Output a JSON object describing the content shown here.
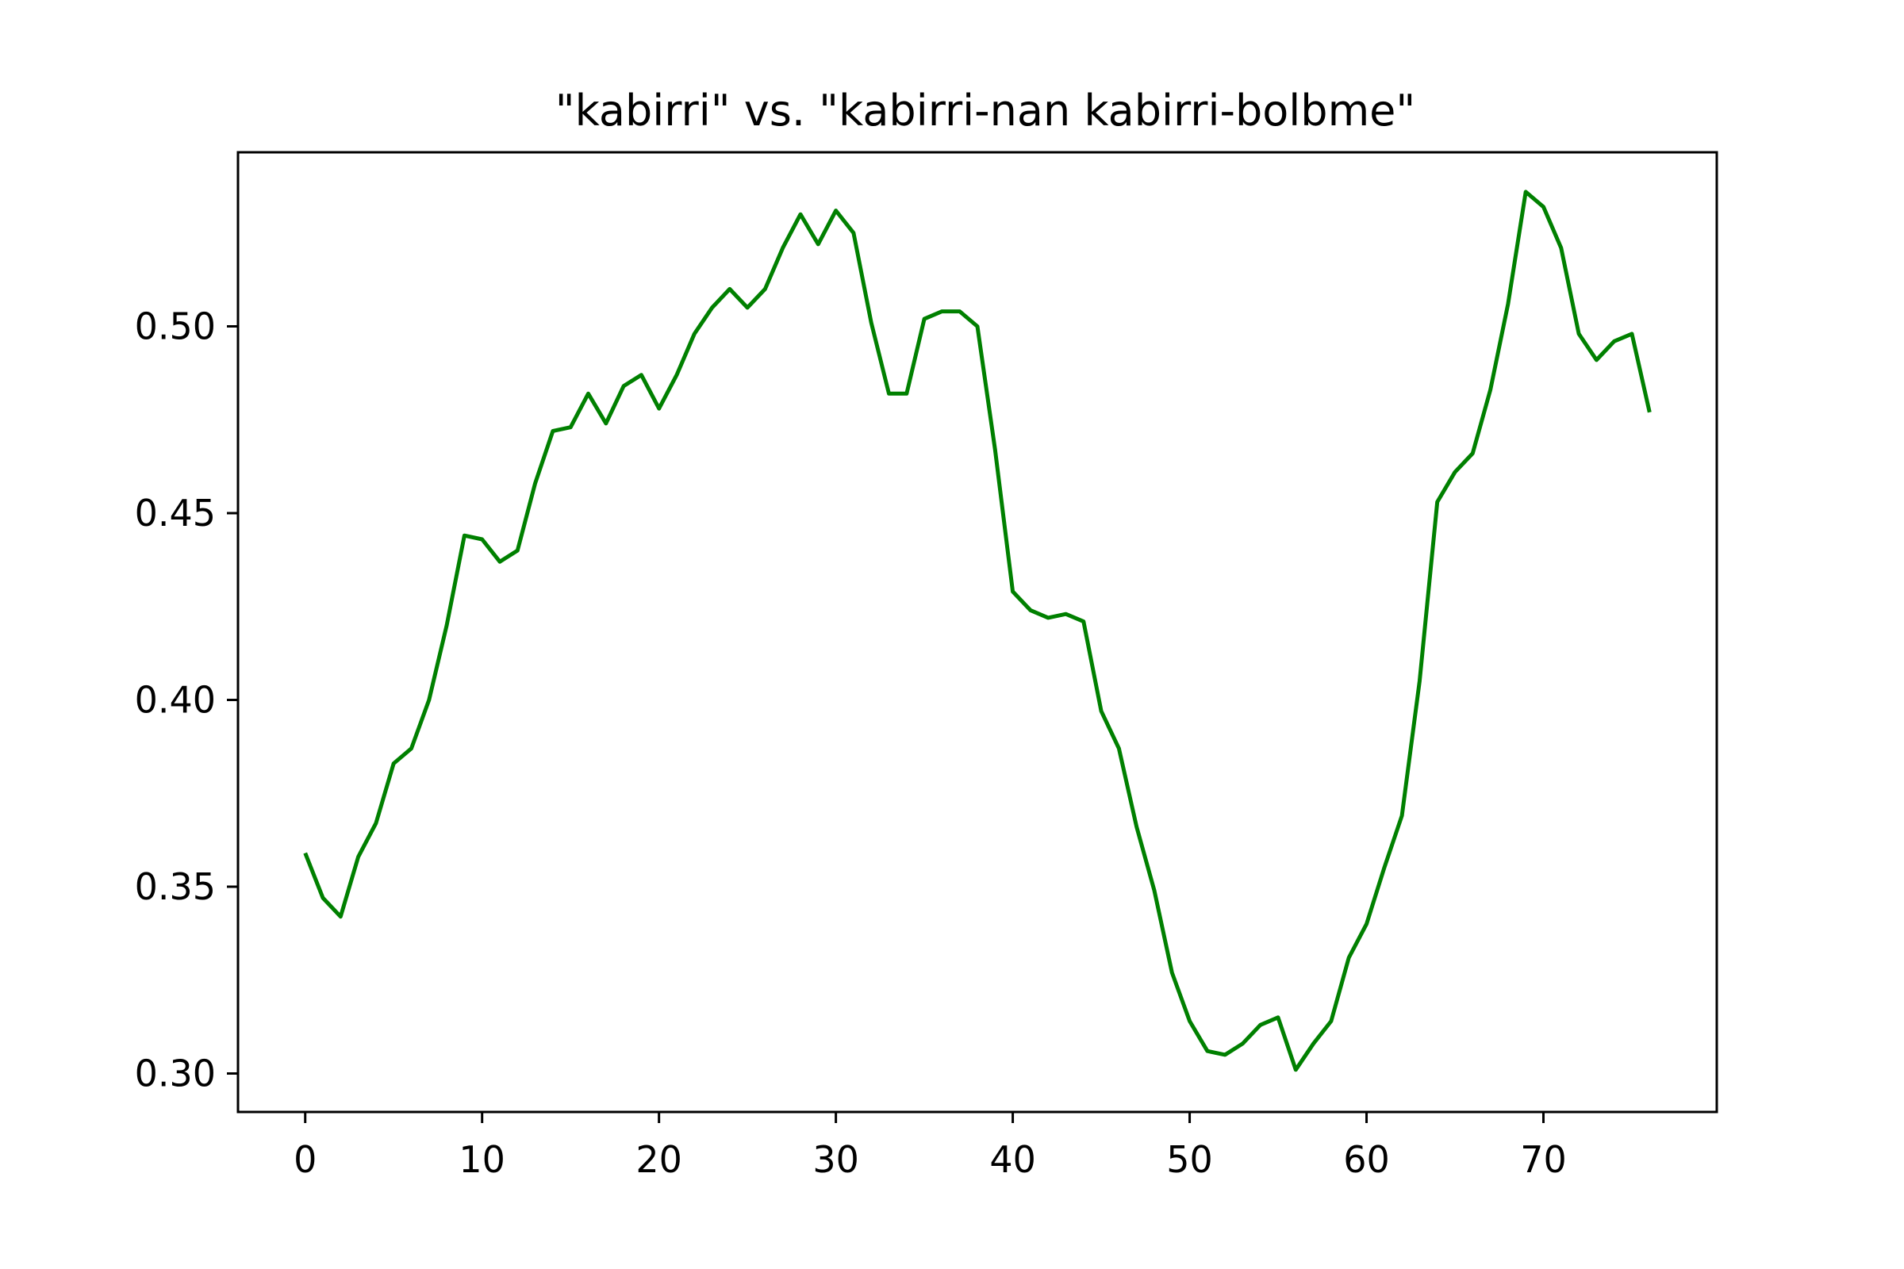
{
  "chart_data": {
    "type": "line",
    "title": "\"kabirri\" vs. \"kabirri-nan kabirri-bolbme\"",
    "xlabel": "",
    "ylabel": "",
    "xlim": [
      -3.8,
      79.8
    ],
    "ylim": [
      0.2897,
      0.5466
    ],
    "xticks": [
      0,
      10,
      20,
      30,
      40,
      50,
      60,
      70
    ],
    "xtick_labels": [
      "0",
      "10",
      "20",
      "30",
      "40",
      "50",
      "60",
      "70"
    ],
    "yticks": [
      0.3,
      0.35,
      0.4,
      0.45,
      0.5
    ],
    "ytick_labels": [
      "0.30",
      "0.35",
      "0.40",
      "0.45",
      "0.50"
    ],
    "grid": false,
    "series": [
      {
        "color": "#008000",
        "x": [
          0,
          1,
          2,
          3,
          4,
          5,
          6,
          7,
          8,
          9,
          10,
          11,
          12,
          13,
          14,
          15,
          16,
          17,
          18,
          19,
          20,
          21,
          22,
          23,
          24,
          25,
          26,
          27,
          28,
          29,
          30,
          31,
          32,
          33,
          34,
          35,
          36,
          37,
          38,
          39,
          40,
          41,
          42,
          43,
          44,
          45,
          46,
          47,
          48,
          49,
          50,
          51,
          52,
          53,
          54,
          55,
          56,
          57,
          58,
          59,
          60,
          61,
          62,
          63,
          64,
          65,
          66,
          67,
          68,
          69,
          70,
          71,
          72,
          73,
          74,
          75,
          76
        ],
        "y": [
          0.359,
          0.347,
          0.342,
          0.358,
          0.367,
          0.383,
          0.387,
          0.4,
          0.42,
          0.444,
          0.443,
          0.437,
          0.44,
          0.458,
          0.472,
          0.473,
          0.482,
          0.474,
          0.484,
          0.487,
          0.478,
          0.487,
          0.498,
          0.505,
          0.51,
          0.505,
          0.51,
          0.521,
          0.53,
          0.522,
          0.531,
          0.525,
          0.501,
          0.482,
          0.482,
          0.502,
          0.504,
          0.504,
          0.5,
          0.467,
          0.429,
          0.424,
          0.422,
          0.423,
          0.421,
          0.397,
          0.387,
          0.366,
          0.349,
          0.327,
          0.314,
          0.306,
          0.305,
          0.308,
          0.313,
          0.315,
          0.301,
          0.308,
          0.314,
          0.331,
          0.34,
          0.355,
          0.369,
          0.405,
          0.453,
          0.461,
          0.466,
          0.483,
          0.506,
          0.536,
          0.532,
          0.521,
          0.498,
          0.491,
          0.496,
          0.498,
          0.477
        ]
      }
    ]
  }
}
